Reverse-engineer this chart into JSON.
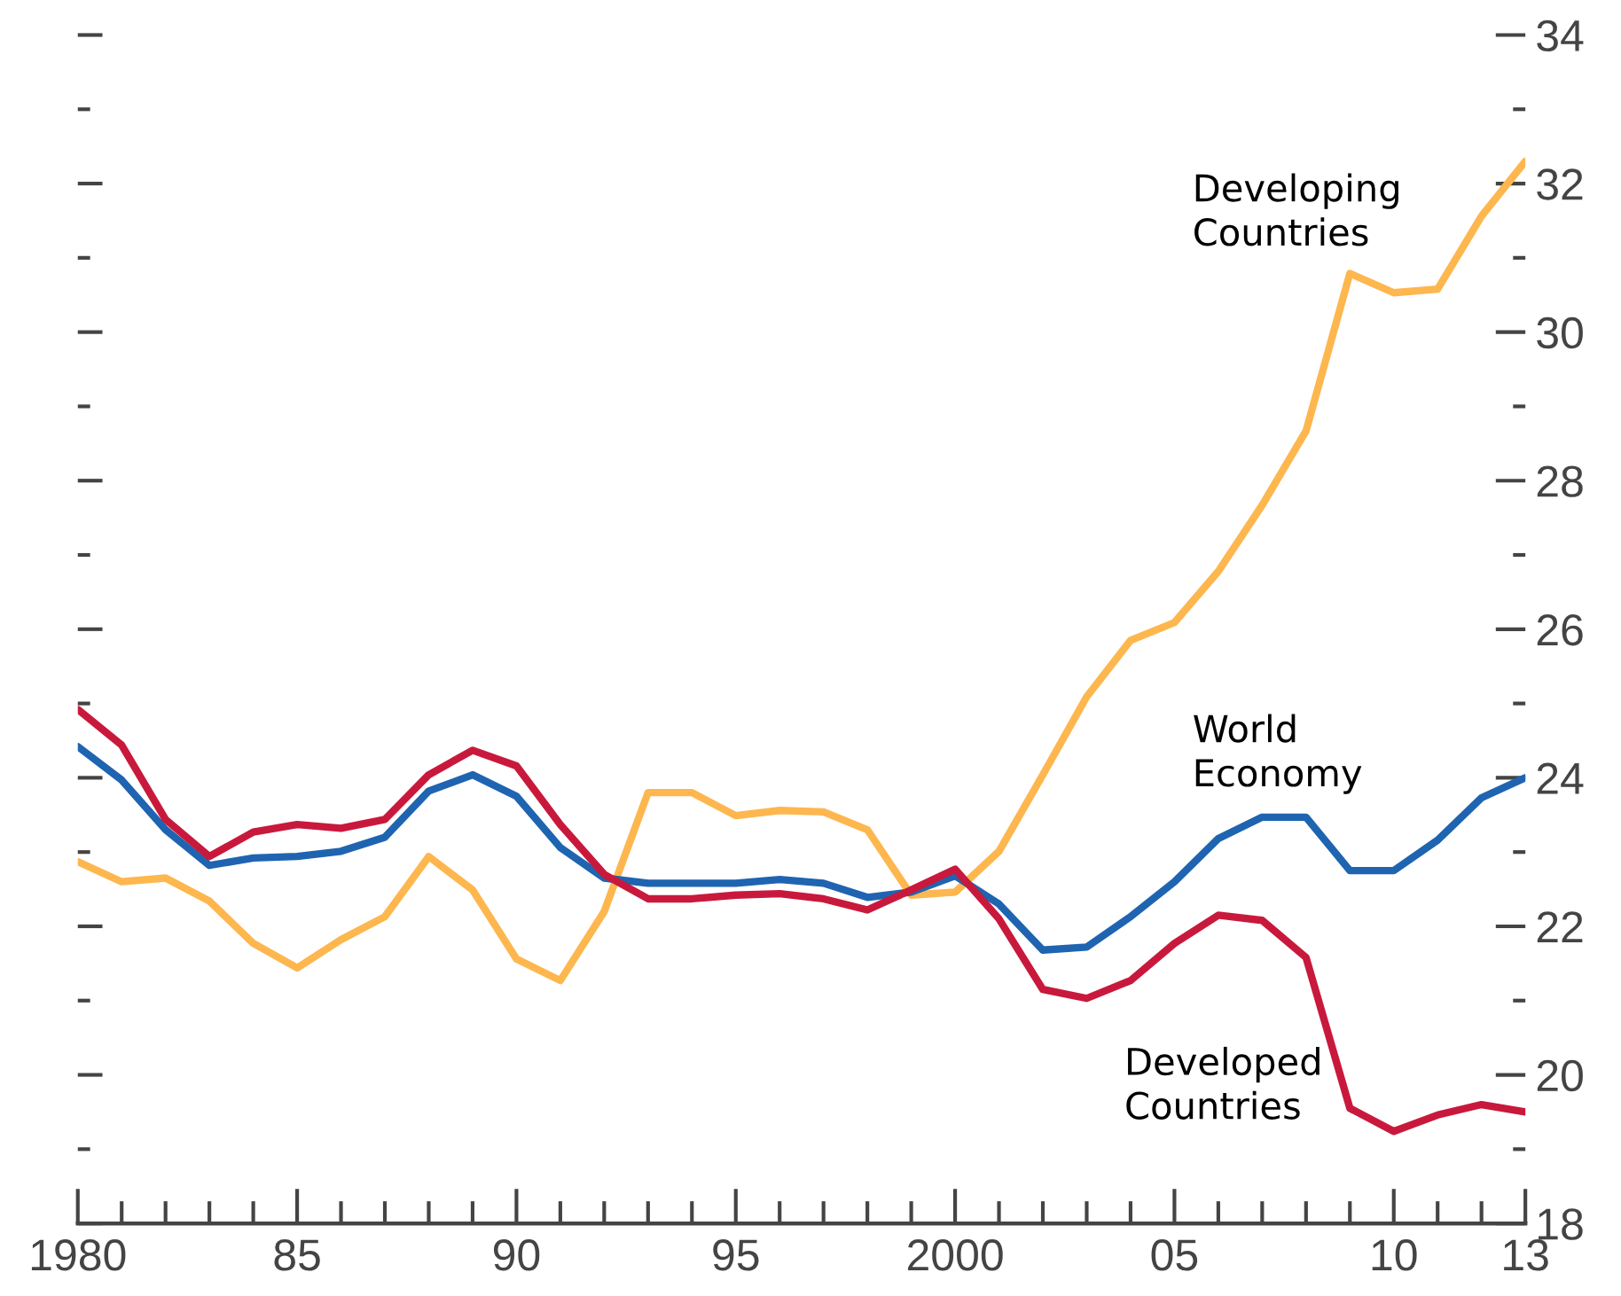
{
  "chart_data": {
    "type": "line",
    "x": [
      1980,
      1981,
      1982,
      1983,
      1984,
      1985,
      1986,
      1987,
      1988,
      1989,
      1990,
      1991,
      1992,
      1993,
      1994,
      1995,
      1996,
      1997,
      1998,
      1999,
      2000,
      2001,
      2002,
      2003,
      2004,
      2005,
      2006,
      2007,
      2008,
      2009,
      2010,
      2011,
      2012,
      2013
    ],
    "series": [
      {
        "name": "Developing Countries",
        "color": "#fdb74e",
        "axis": "y2",
        "values": [
          22.87,
          22.6,
          22.65,
          22.34,
          21.77,
          21.44,
          21.82,
          22.13,
          22.94,
          22.49,
          21.56,
          21.27,
          22.2,
          23.8,
          23.8,
          23.49,
          23.56,
          23.54,
          23.3,
          22.42,
          22.46,
          23.01,
          24.04,
          25.09,
          25.85,
          26.09,
          26.78,
          27.67,
          28.67,
          30.79,
          30.53,
          30.58,
          31.56,
          32.3
        ]
      },
      {
        "name": "World Economy",
        "color": "#1f64b0",
        "axis": "y2",
        "values": [
          24.42,
          23.97,
          23.3,
          22.82,
          22.92,
          22.94,
          23.01,
          23.2,
          23.82,
          24.04,
          23.75,
          23.06,
          22.65,
          22.58,
          22.58,
          22.58,
          22.63,
          22.58,
          22.39,
          22.46,
          22.68,
          22.3,
          21.68,
          21.72,
          22.13,
          22.6,
          23.18,
          23.47,
          23.47,
          22.75,
          22.75,
          23.16,
          23.73,
          24.0
        ]
      },
      {
        "name": "Developed Countries",
        "color": "#c8193c",
        "axis": "y2",
        "values": [
          24.92,
          24.44,
          23.44,
          22.94,
          23.27,
          23.37,
          23.32,
          23.44,
          24.04,
          24.37,
          24.16,
          23.37,
          22.7,
          22.37,
          22.37,
          22.42,
          22.44,
          22.37,
          22.22,
          22.49,
          22.77,
          22.1,
          21.15,
          21.03,
          21.27,
          21.77,
          22.15,
          22.08,
          21.58,
          19.55,
          19.24,
          19.46,
          19.6,
          19.5
        ]
      }
    ],
    "xlim": [
      1980,
      2013
    ],
    "xticks": [
      {
        "value": 1980,
        "label": "1980"
      },
      {
        "value": 1981,
        "label": null
      },
      {
        "value": 1982,
        "label": null
      },
      {
        "value": 1983,
        "label": null
      },
      {
        "value": 1984,
        "label": null
      },
      {
        "value": 1985,
        "label": "85"
      },
      {
        "value": 1986,
        "label": null
      },
      {
        "value": 1987,
        "label": null
      },
      {
        "value": 1988,
        "label": null
      },
      {
        "value": 1989,
        "label": null
      },
      {
        "value": 1990,
        "label": "90"
      },
      {
        "value": 1991,
        "label": null
      },
      {
        "value": 1992,
        "label": null
      },
      {
        "value": 1993,
        "label": null
      },
      {
        "value": 1994,
        "label": null
      },
      {
        "value": 1995,
        "label": "95"
      },
      {
        "value": 1996,
        "label": null
      },
      {
        "value": 1997,
        "label": null
      },
      {
        "value": 1998,
        "label": null
      },
      {
        "value": 1999,
        "label": null
      },
      {
        "value": 2000,
        "label": "2000"
      },
      {
        "value": 2001,
        "label": null
      },
      {
        "value": 2002,
        "label": null
      },
      {
        "value": 2003,
        "label": null
      },
      {
        "value": 2004,
        "label": null
      },
      {
        "value": 2005,
        "label": "05"
      },
      {
        "value": 2006,
        "label": null
      },
      {
        "value": 2007,
        "label": null
      },
      {
        "value": 2008,
        "label": null
      },
      {
        "value": 2009,
        "label": null
      },
      {
        "value": 2010,
        "label": "10"
      },
      {
        "value": 2011,
        "label": null
      },
      {
        "value": 2012,
        "label": null
      },
      {
        "value": 2013,
        "label": "13"
      }
    ],
    "y2lim": [
      18,
      34
    ],
    "y2ticks": [
      18,
      {
        "value": 19,
        "label": null
      },
      20,
      {
        "value": 21,
        "label": null
      },
      22,
      {
        "value": 23,
        "label": null
      },
      24,
      {
        "value": 25,
        "label": null
      },
      26,
      {
        "value": 27,
        "label": null
      },
      28,
      {
        "value": 29,
        "label": null
      },
      30,
      {
        "value": 31,
        "label": null
      },
      32,
      {
        "value": 33,
        "label": null
      },
      34
    ],
    "grid": false,
    "legend": false,
    "line_style": "solid",
    "marker": "none"
  }
}
